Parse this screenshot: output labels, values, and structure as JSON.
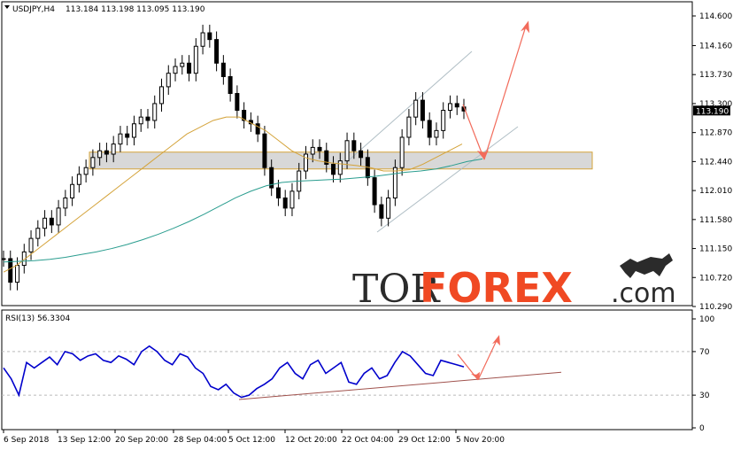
{
  "header": {
    "symbol": "USDJPY,H4",
    "ohlc": "113.184 113.198 113.095 113.190",
    "current_price": "113.190"
  },
  "watermark": {
    "part1": "TOR",
    "part2": "FOREX",
    "part3": ".com",
    "bull_icon": "bull-icon"
  },
  "chart_data": [
    {
      "type": "line",
      "title": "",
      "subtitle": "USDJPY,H4 113.184 113.198 113.095 113.190",
      "y_ticks": [
        "114.600",
        "114.160",
        "113.730",
        "113.300",
        "112.870",
        "112.440",
        "112.010",
        "111.580",
        "111.150",
        "110.720",
        "110.290"
      ],
      "ylim": [
        110.29,
        114.6
      ],
      "x_ticks": [
        "6 Sep 2018",
        "13 Sep 12:00",
        "20 Sep 20:00",
        "28 Sep 04:00",
        "5 Oct 12:00",
        "12 Oct 20:00",
        "22 Oct 04:00",
        "29 Oct 12:00",
        "5 Nov 20:00"
      ],
      "series": [
        {
          "name": "",
          "kind": "close",
          "color": "#000000",
          "values": [
            111.0,
            110.65,
            110.9,
            111.1,
            111.3,
            111.45,
            111.6,
            111.5,
            111.75,
            111.9,
            112.1,
            112.25,
            112.35,
            112.5,
            112.6,
            112.55,
            112.7,
            112.85,
            112.8,
            113.0,
            113.1,
            113.05,
            113.3,
            113.55,
            113.75,
            113.85,
            113.9,
            113.75,
            114.15,
            114.35,
            114.25,
            113.9,
            113.7,
            113.45,
            113.2,
            113.05,
            113.0,
            112.85,
            112.35,
            112.05,
            111.9,
            111.75,
            112.0,
            112.3,
            112.55,
            112.65,
            112.6,
            112.4,
            112.25,
            112.45,
            112.75,
            112.6,
            112.5,
            112.2,
            111.8,
            111.6,
            111.9,
            112.35,
            112.8,
            113.1,
            113.35,
            113.05,
            112.8,
            112.9,
            113.2,
            113.3,
            113.25,
            113.19
          ]
        },
        {
          "name": "",
          "kind": "ma-fast",
          "color": "#d4a33a",
          "values": [
            110.8,
            110.9,
            111.05,
            111.2,
            111.35,
            111.5,
            111.65,
            111.8,
            111.95,
            112.1,
            112.25,
            112.4,
            112.55,
            112.7,
            112.85,
            112.95,
            113.05,
            113.1,
            113.1,
            113.0,
            112.9,
            112.75,
            112.6,
            112.5,
            112.45,
            112.42,
            112.4,
            112.38,
            112.35,
            112.3,
            112.3,
            112.32,
            112.4,
            112.5,
            112.6,
            112.7
          ]
        },
        {
          "name": "",
          "kind": "ma-slow",
          "color": "#2a9d8f",
          "values": [
            110.95,
            110.96,
            110.97,
            110.99,
            111.02,
            111.06,
            111.1,
            111.15,
            111.21,
            111.28,
            111.36,
            111.45,
            111.55,
            111.66,
            111.78,
            111.9,
            112.0,
            112.08,
            112.13,
            112.15,
            112.16,
            112.17,
            112.18,
            112.2,
            112.22,
            112.25,
            112.28,
            112.3,
            112.33,
            112.38,
            112.44,
            112.48
          ]
        }
      ],
      "annotations": {
        "support_zone": [
          112.33,
          112.58
        ],
        "channel_color": "#b0bec5",
        "arrow_color": "#f26b5b",
        "arrow_down_to": 112.47,
        "arrow_up_to": 114.45
      },
      "grid": false,
      "legend": "none"
    },
    {
      "type": "line",
      "title": "",
      "subtitle": "RSI(13) 56.3304",
      "y_ticks": [
        "100",
        "70",
        "30",
        "0"
      ],
      "levels": [
        70,
        30
      ],
      "ylim": [
        0,
        100
      ],
      "series": [
        {
          "name": "",
          "color": "#0000cc",
          "values": [
            55,
            45,
            30,
            60,
            55,
            60,
            65,
            58,
            70,
            68,
            62,
            66,
            68,
            62,
            60,
            66,
            63,
            58,
            70,
            75,
            70,
            62,
            58,
            68,
            65,
            55,
            50,
            38,
            35,
            40,
            32,
            28,
            30,
            36,
            40,
            45,
            55,
            60,
            50,
            45,
            58,
            62,
            50,
            55,
            60,
            42,
            40,
            50,
            55,
            45,
            48,
            60,
            70,
            66,
            58,
            50,
            48,
            62,
            60,
            58,
            56
          ]
        },
        {
          "name": "",
          "kind": "trendline",
          "color": "#a0524d",
          "values": [
            26,
            51
          ]
        }
      ],
      "annotations": {
        "arrow_color": "#f26b5b",
        "arrow_down_to": 44,
        "arrow_up_to": 82
      },
      "grid": false,
      "legend": "none"
    }
  ]
}
